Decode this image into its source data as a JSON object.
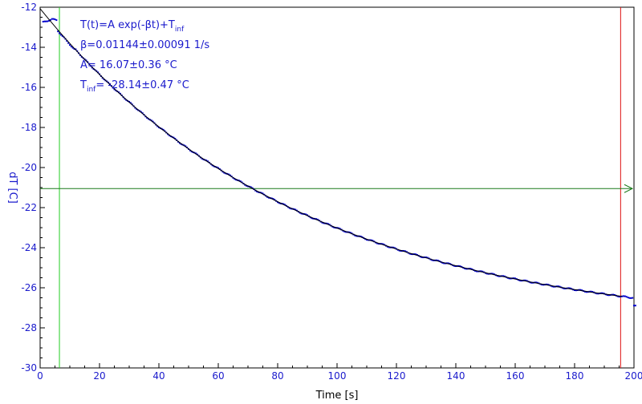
{
  "chart_data": {
    "type": "scatter",
    "xlabel": "Time [s]",
    "ylabel": "dT [C]",
    "xlim": [
      0,
      200
    ],
    "ylim": [
      -30,
      -12
    ],
    "xticks": [
      "0",
      "20",
      "40",
      "60",
      "80",
      "100",
      "120",
      "140",
      "160",
      "180",
      "200"
    ],
    "yticks": [
      "-12",
      "-14",
      "-16",
      "-18",
      "-20",
      "-22",
      "-24",
      "-26",
      "-28",
      "-30"
    ],
    "grid": false,
    "fit": {
      "equation": "T(t)=A exp(-βt)+T",
      "equation_sub": "inf",
      "beta": "β=0.01144±0.00091 1/s",
      "amp": "A= 16.07±0.36 °C",
      "tinf_prefix": "T",
      "tinf_sub": "inf",
      "tinf_value": "= -28.14±0.47 °C",
      "A": 16.07,
      "beta_value": 0.01144,
      "T_inf": -28.14
    },
    "markers": {
      "left_vertical_x": 6.5,
      "right_vertical_x": 195.5,
      "horizontal_y": -21.05
    },
    "colors": {
      "data": "#0000cc",
      "fit": "#000000",
      "axis_text": "#1a1acc",
      "left_marker": "#22cc22",
      "right_marker": "#dd1111",
      "horizontal_marker": "#1a7a1a"
    }
  }
}
